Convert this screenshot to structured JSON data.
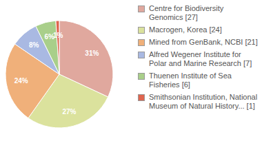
{
  "chart_data": {
    "type": "pie",
    "categories": [
      "Centre for Biodiversity Genomics [27]",
      "Macrogen, Korea [24]",
      "Mined from GenBank, NCBI [21]",
      "Alfred Wegener Institute for Polar and Marine Research [7]",
      "Thuenen Institute of Sea Fisheries [6]",
      "Smithsonian Institution, National Museum of Natural History... [1]"
    ],
    "values": [
      31,
      27,
      24,
      8,
      6,
      1
    ],
    "value_labels": [
      "31%",
      "27%",
      "24%",
      "8%",
      "6%",
      "1%"
    ],
    "colors": [
      "#e0a89e",
      "#dbe29d",
      "#f0b07a",
      "#a9b9e2",
      "#a9cf8a",
      "#e0654f"
    ],
    "data_labels": true,
    "legend": "right"
  }
}
